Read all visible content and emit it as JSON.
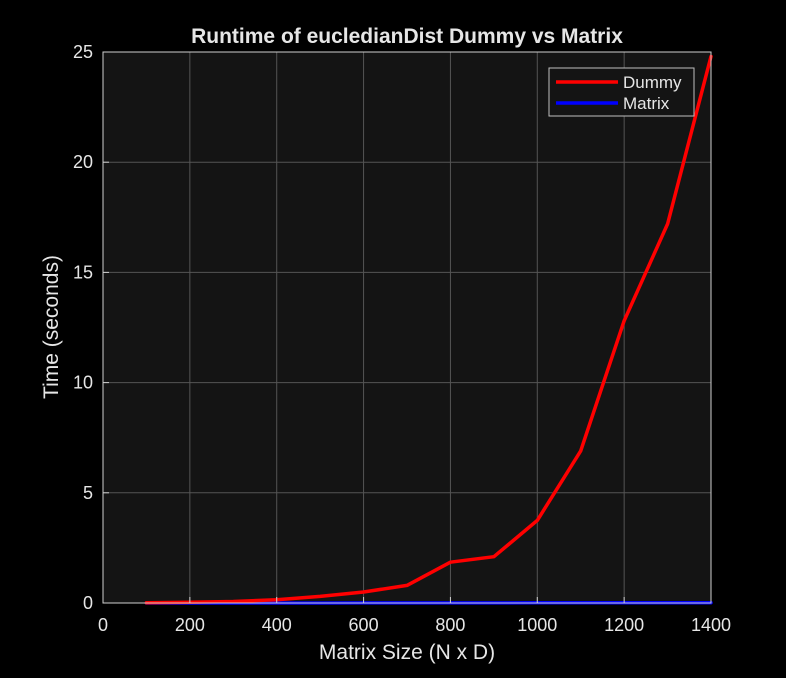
{
  "chart_data": {
    "type": "line",
    "title": "Runtime of eucledianDist Dummy vs Matrix",
    "xlabel": "Matrix Size (N x D)",
    "ylabel": "Time (seconds)",
    "xlim": [
      0,
      1400
    ],
    "ylim": [
      0,
      25
    ],
    "x_ticks": [
      "0",
      "200",
      "400",
      "600",
      "800",
      "1000",
      "1200",
      "1400"
    ],
    "y_ticks": [
      "0",
      "5",
      "10",
      "15",
      "20",
      "25"
    ],
    "grid": true,
    "legend_position": "top-right",
    "x": [
      100,
      200,
      300,
      400,
      500,
      600,
      700,
      800,
      900,
      1000,
      1100,
      1200,
      1300,
      1400
    ],
    "series": [
      {
        "name": "Dummy",
        "color": "#ff0000",
        "values": [
          0.01,
          0.03,
          0.07,
          0.15,
          0.3,
          0.5,
          0.8,
          1.85,
          2.1,
          3.75,
          6.9,
          12.8,
          17.2,
          24.8
        ]
      },
      {
        "name": "Matrix",
        "color": "#0000ff",
        "values": [
          0.001,
          0.001,
          0.001,
          0.002,
          0.002,
          0.003,
          0.004,
          0.005,
          0.006,
          0.007,
          0.008,
          0.009,
          0.01,
          0.012
        ]
      }
    ]
  },
  "colors": {
    "figure_background": "#000000",
    "axes_background": "#141414",
    "grid": "#555555",
    "axis_line": "#d0d0d0",
    "text": "#e6e6e6"
  }
}
